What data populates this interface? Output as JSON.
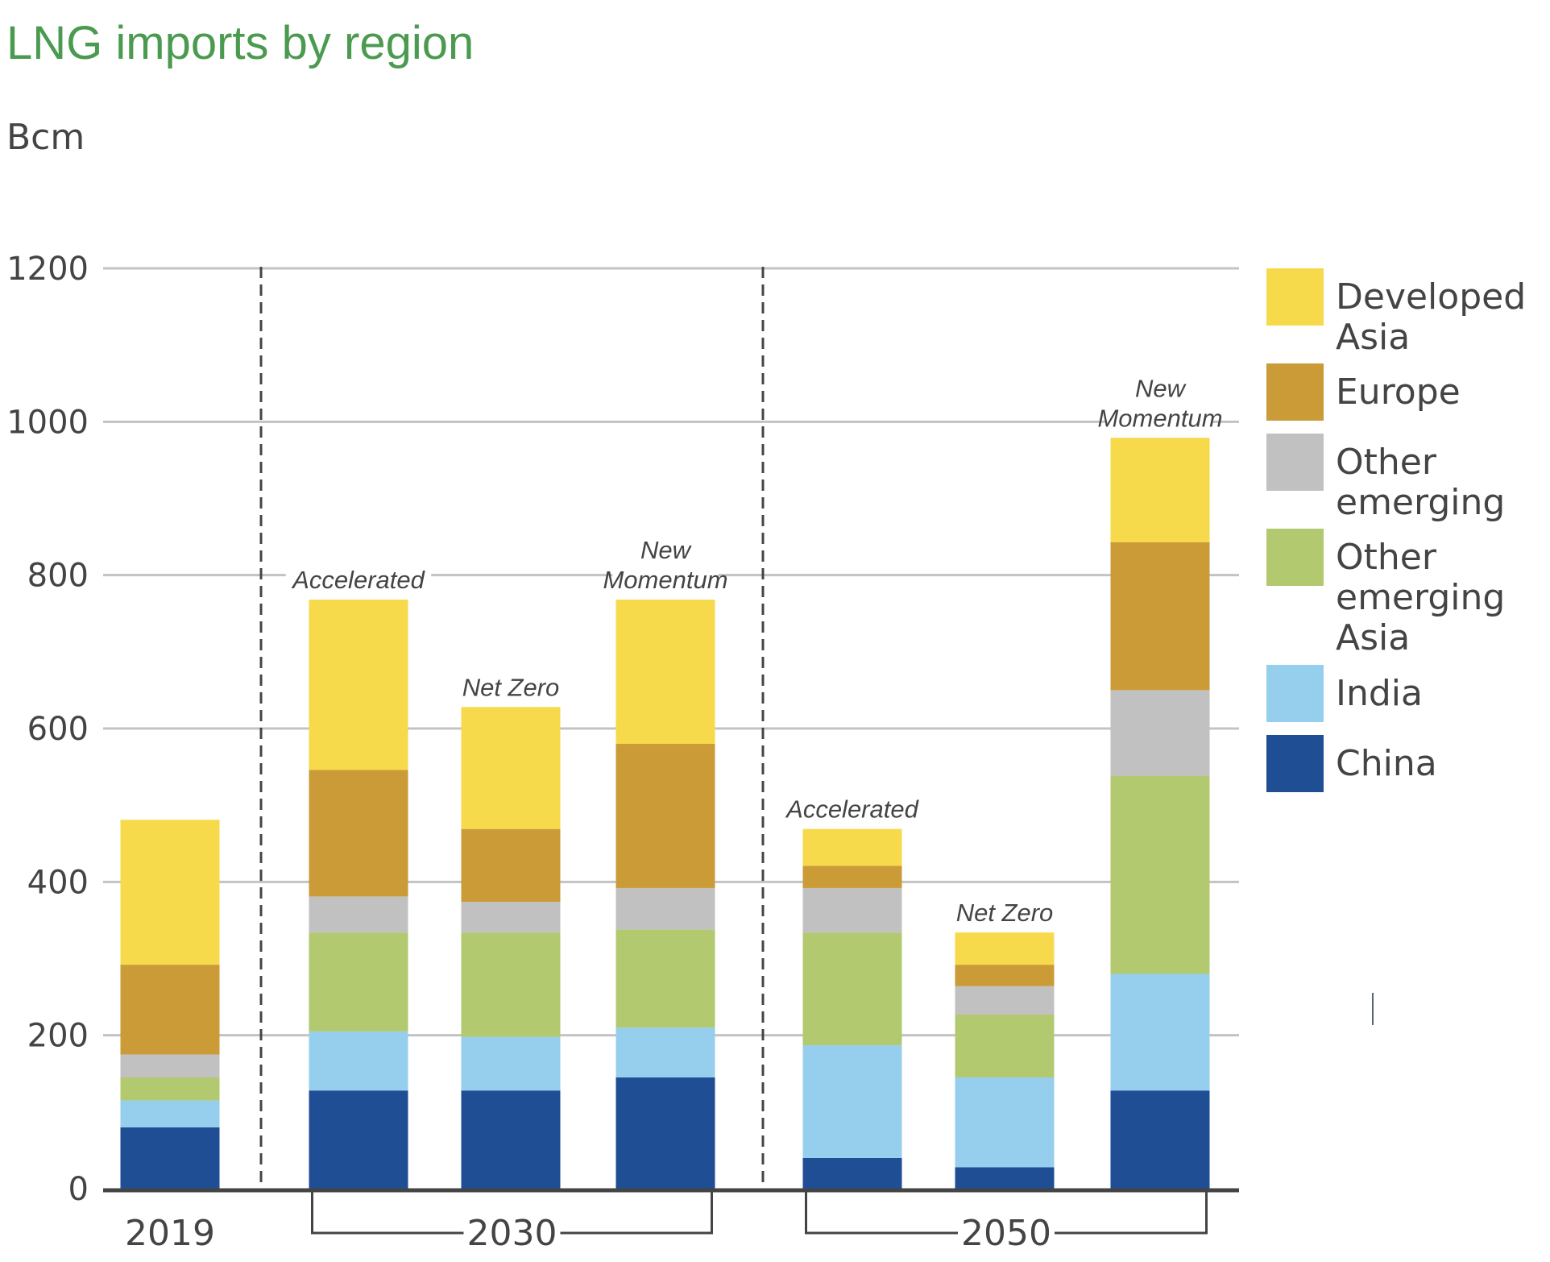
{
  "chart_data": {
    "type": "bar",
    "stacked": true,
    "title": "LNG imports by region",
    "ylabel": "Bcm",
    "xlabel": "",
    "ylim": [
      0,
      1200
    ],
    "yticks": [
      0,
      200,
      400,
      600,
      800,
      1000,
      1200
    ],
    "grid": true,
    "legend_position": "right",
    "groups": [
      {
        "label": "2019",
        "bars": [
          0
        ]
      },
      {
        "label": "2030",
        "bars": [
          1,
          2,
          3
        ]
      },
      {
        "label": "2050",
        "bars": [
          4,
          5,
          6
        ]
      }
    ],
    "categories": [
      "2019",
      "2030 Accelerated",
      "2030 Net Zero",
      "2030 New Momentum",
      "2050 Accelerated",
      "2050 Net Zero",
      "2050 New Momentum"
    ],
    "bar_labels": [
      "",
      "Accelerated",
      "Net Zero",
      "New Momentum",
      "Accelerated",
      "Net Zero",
      "New Momentum"
    ],
    "series": [
      {
        "name": "China",
        "color": "#1f4e94",
        "values": [
          80,
          128,
          128,
          145,
          40,
          28,
          128
        ]
      },
      {
        "name": "India",
        "color": "#96ceee",
        "values": [
          35,
          77,
          70,
          65,
          147,
          117,
          152
        ]
      },
      {
        "name": "Other emerging Asia",
        "color": "#b2c970",
        "values": [
          30,
          129,
          136,
          128,
          147,
          82,
          258
        ]
      },
      {
        "name": "Other emerging",
        "color": "#c1c1c1",
        "values": [
          30,
          47,
          40,
          54,
          58,
          37,
          112
        ]
      },
      {
        "name": "Europe",
        "color": "#ca9b36",
        "values": [
          117,
          165,
          95,
          188,
          29,
          28,
          193
        ]
      },
      {
        "name": "Developed Asia",
        "color": "#f7d94c",
        "values": [
          189,
          222,
          159,
          188,
          48,
          42,
          136
        ]
      }
    ],
    "legend_order": [
      "Developed Asia",
      "Europe",
      "Other emerging",
      "Other emerging Asia",
      "India",
      "China"
    ],
    "legend_lines": {
      "Developed Asia": [
        "Developed",
        "Asia"
      ],
      "Europe": [
        "Europe"
      ],
      "Other emerging": [
        "Other",
        "emerging"
      ],
      "Other emerging Asia": [
        "Other",
        "emerging",
        "Asia"
      ],
      "India": [
        "India"
      ],
      "China": [
        "China"
      ]
    }
  }
}
